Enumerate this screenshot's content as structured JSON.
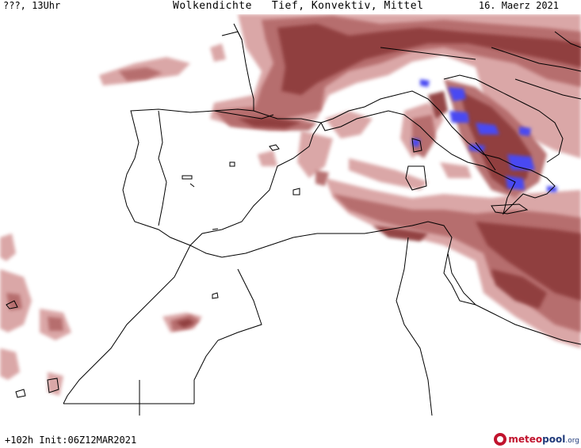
{
  "header": {
    "location_time": "???, 13Uhr",
    "title": "Wolkendichte   Tief, Konvektiv, Mittel",
    "date": "16. Maerz 2021"
  },
  "footer": {
    "forecast_info": "+102h Init:06Z12MAR2021",
    "logo_meteo": "meteo",
    "logo_pool": "pool",
    "logo_org": ".org"
  },
  "map": {
    "region": "Western Mediterranean",
    "colors": {
      "cloud_light": "#d9a3a3",
      "cloud_medium": "#b56c6c",
      "cloud_dense": "#8f3e3e",
      "convective": "#4a4af2",
      "coastline": "#000000"
    }
  }
}
